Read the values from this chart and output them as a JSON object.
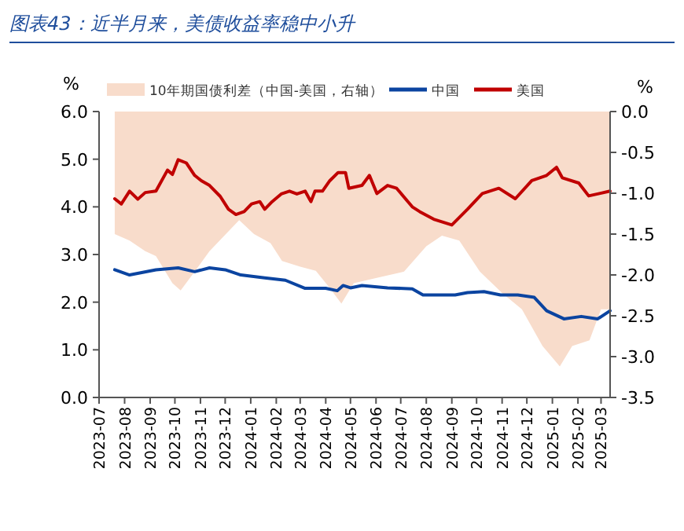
{
  "chart_data": {
    "type": "line",
    "title": "图表43：近半月来，美债收益率稳中小升",
    "ylabel": "%",
    "y2label": "%",
    "xlim": [
      "2023-07-01",
      "2025-03-12"
    ],
    "xticks": [
      "2023-07",
      "2023-08",
      "2023-09",
      "2023-10",
      "2023-11",
      "2023-12",
      "2024-01",
      "2024-02",
      "2024-03",
      "2024-04",
      "2024-05",
      "2024-06",
      "2024-07",
      "2024-08",
      "2024-09",
      "2024-10",
      "2024-11",
      "2024-12",
      "2025-01",
      "2025-02",
      "2025-03"
    ],
    "ylim": [
      0,
      6
    ],
    "yticks": [
      {
        "value": 0,
        "label": "0.0"
      },
      {
        "value": 1,
        "label": "1.0"
      },
      {
        "value": 2,
        "label": "2.0"
      },
      {
        "value": 3,
        "label": "3.0"
      },
      {
        "value": 4,
        "label": "4.0"
      },
      {
        "value": 5,
        "label": "5.0"
      },
      {
        "value": 6,
        "label": "6.0"
      }
    ],
    "y2lim": [
      -3.5,
      0
    ],
    "y2ticks": [
      -3.5,
      {
        "value": -3,
        "label": "-3.0"
      },
      -2.5,
      {
        "value": -2,
        "label": "-2.0"
      },
      -1.5,
      {
        "value": -1,
        "label": "-1.0"
      },
      -0.5,
      {
        "value": 0,
        "label": "0.0"
      }
    ],
    "grid": false,
    "legend": "top",
    "series": [
      {
        "name": "10年期国债利差（中国-美国，右轴）",
        "type": "area",
        "axis": "y2",
        "color": "#f8dccb",
        "x": [
          "2023-07-20",
          "2023-08-07",
          "2023-08-26",
          "2023-09-08",
          "2023-09-28",
          "2023-10-08",
          "2023-10-25",
          "2023-11-12",
          "2023-11-30",
          "2023-12-18",
          "2024-01-05",
          "2024-01-25",
          "2024-02-08",
          "2024-03-01",
          "2024-03-20",
          "2024-04-05",
          "2024-04-20",
          "2024-05-05",
          "2024-06-05",
          "2024-07-05",
          "2024-08-01",
          "2024-08-20",
          "2024-09-10",
          "2024-10-05",
          "2024-11-01",
          "2024-11-25",
          "2024-12-20",
          "2025-01-10",
          "2025-01-25",
          "2025-02-15",
          "2025-03-01",
          "2025-03-12"
        ],
        "values": [
          -1.5,
          -1.58,
          -1.71,
          -1.77,
          -2.1,
          -2.19,
          -1.96,
          -1.71,
          -1.52,
          -1.33,
          -1.5,
          -1.61,
          -1.83,
          -1.9,
          -1.95,
          -2.15,
          -2.35,
          -2.1,
          -2.03,
          -1.96,
          -1.65,
          -1.52,
          -1.58,
          -1.96,
          -2.22,
          -2.42,
          -2.87,
          -3.12,
          -2.87,
          -2.8,
          -2.42,
          -2.42
        ]
      },
      {
        "name": "中国",
        "color": "#0b44a0",
        "x": [
          "2023-07-20",
          "2023-08-07",
          "2023-09-08",
          "2023-10-05",
          "2023-10-25",
          "2023-11-12",
          "2023-12-01",
          "2023-12-20",
          "2024-01-18",
          "2024-02-12",
          "2024-03-07",
          "2024-04-01",
          "2024-04-15",
          "2024-04-22",
          "2024-05-01",
          "2024-05-15",
          "2024-06-15",
          "2024-07-15",
          "2024-07-28",
          "2024-08-20",
          "2024-09-05",
          "2024-09-20",
          "2024-10-10",
          "2024-10-30",
          "2024-11-20",
          "2024-12-10",
          "2024-12-25",
          "2025-01-15",
          "2025-02-05",
          "2025-02-25",
          "2025-03-12"
        ],
        "values": [
          2.68,
          2.57,
          2.68,
          2.72,
          2.64,
          2.72,
          2.68,
          2.57,
          2.51,
          2.46,
          2.29,
          2.29,
          2.24,
          2.35,
          2.3,
          2.35,
          2.3,
          2.28,
          2.15,
          2.15,
          2.15,
          2.2,
          2.22,
          2.15,
          2.15,
          2.1,
          1.82,
          1.65,
          1.7,
          1.65,
          1.82
        ]
      },
      {
        "name": "美国",
        "color": "#c00000",
        "x": [
          "2023-07-20",
          "2023-07-28",
          "2023-08-07",
          "2023-08-17",
          "2023-08-26",
          "2023-09-08",
          "2023-09-22",
          "2023-09-28",
          "2023-10-05",
          "2023-10-15",
          "2023-10-25",
          "2023-11-02",
          "2023-11-12",
          "2023-11-25",
          "2023-12-05",
          "2023-12-14",
          "2023-12-24",
          "2024-01-02",
          "2024-01-12",
          "2024-01-18",
          "2024-01-27",
          "2024-02-07",
          "2024-02-17",
          "2024-02-26",
          "2024-03-07",
          "2024-03-14",
          "2024-03-19",
          "2024-03-28",
          "2024-04-06",
          "2024-04-16",
          "2024-04-25",
          "2024-04-29",
          "2024-05-15",
          "2024-05-24",
          "2024-06-02",
          "2024-06-15",
          "2024-06-26",
          "2024-07-15",
          "2024-07-24",
          "2024-08-10",
          "2024-09-01",
          "2024-09-20",
          "2024-10-08",
          "2024-10-28",
          "2024-11-17",
          "2024-12-07",
          "2024-12-25",
          "2025-01-06",
          "2025-01-13",
          "2025-02-02",
          "2025-02-14",
          "2025-02-27",
          "2025-03-12"
        ],
        "values": [
          4.17,
          4.06,
          4.33,
          4.16,
          4.3,
          4.33,
          4.77,
          4.68,
          4.99,
          4.92,
          4.66,
          4.55,
          4.45,
          4.22,
          3.95,
          3.84,
          3.9,
          4.06,
          4.11,
          3.95,
          4.11,
          4.27,
          4.33,
          4.27,
          4.33,
          4.11,
          4.33,
          4.33,
          4.55,
          4.72,
          4.72,
          4.39,
          4.45,
          4.66,
          4.28,
          4.45,
          4.39,
          4.0,
          3.9,
          3.74,
          3.62,
          3.95,
          4.28,
          4.39,
          4.17,
          4.55,
          4.66,
          4.83,
          4.61,
          4.5,
          4.23,
          4.28,
          4.33
        ]
      }
    ]
  }
}
